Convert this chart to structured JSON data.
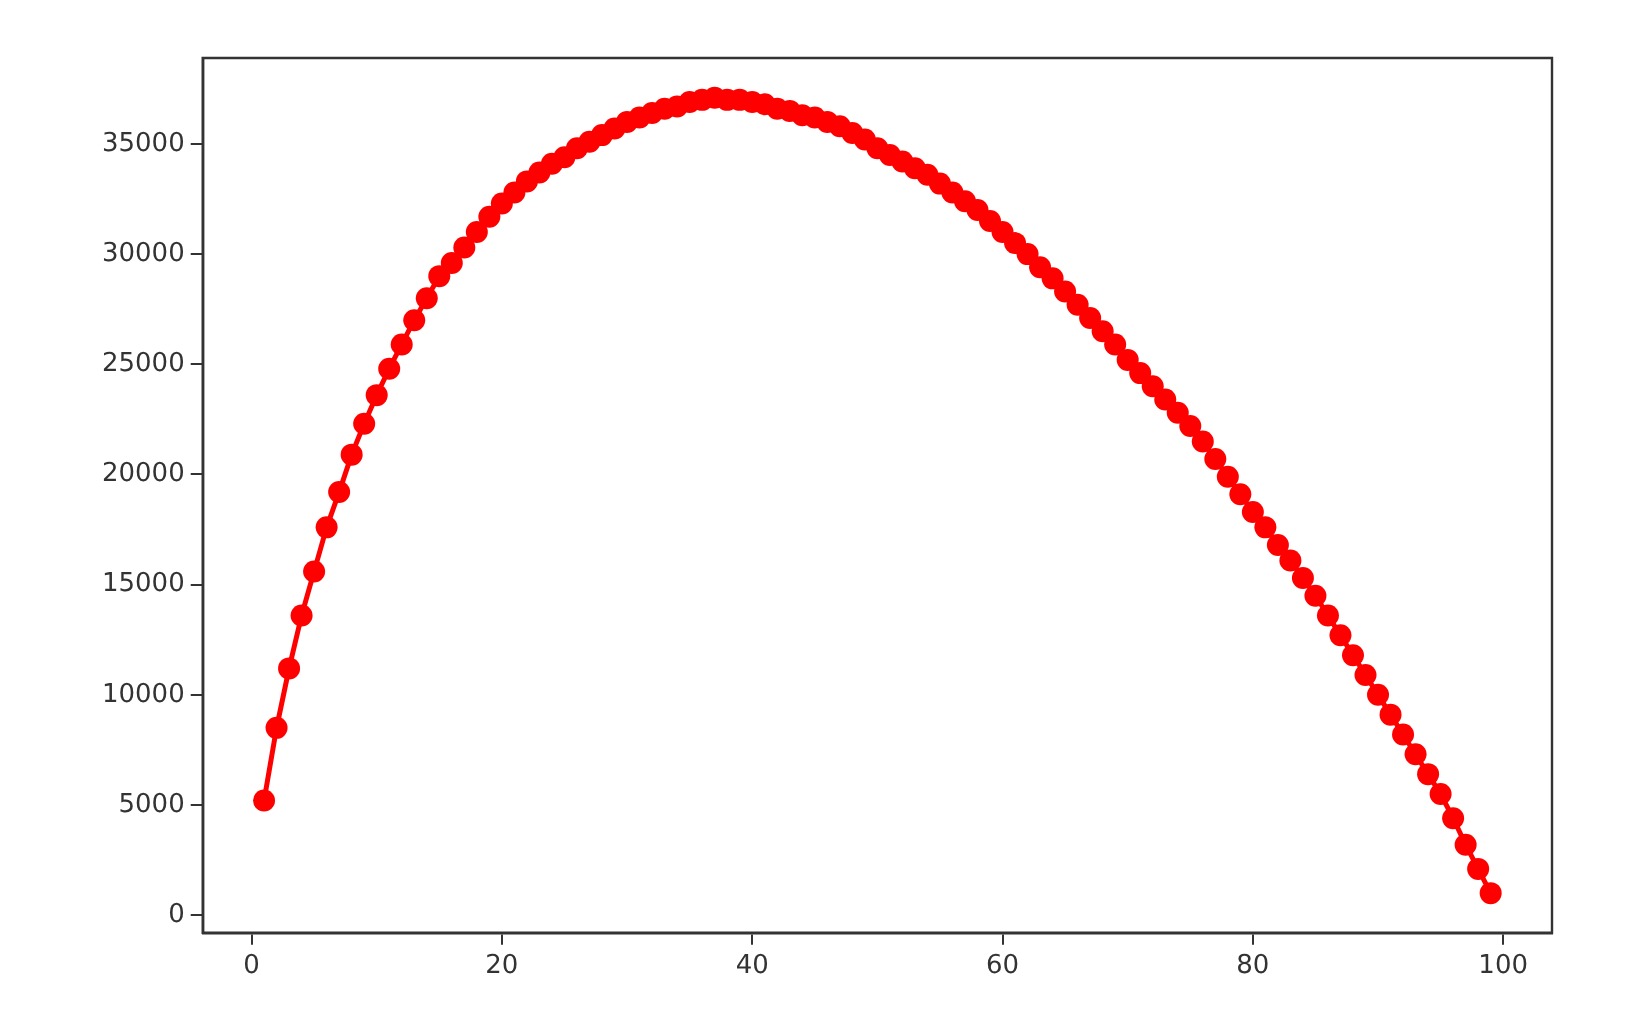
{
  "chart_data": {
    "type": "line",
    "marker": "circle",
    "grid": false,
    "x": [
      1,
      2,
      3,
      4,
      5,
      6,
      7,
      8,
      9,
      10,
      11,
      12,
      13,
      14,
      15,
      16,
      17,
      18,
      19,
      20,
      21,
      22,
      23,
      24,
      25,
      26,
      27,
      28,
      29,
      30,
      31,
      32,
      33,
      34,
      35,
      36,
      37,
      38,
      39,
      40,
      41,
      42,
      43,
      44,
      45,
      46,
      47,
      48,
      49,
      50,
      51,
      52,
      53,
      54,
      55,
      56,
      57,
      58,
      59,
      60,
      61,
      62,
      63,
      64,
      65,
      66,
      67,
      68,
      69,
      70,
      71,
      72,
      73,
      74,
      75,
      76,
      77,
      78,
      79,
      80,
      81,
      82,
      83,
      84,
      85,
      86,
      87,
      88,
      89,
      90,
      91,
      92,
      93,
      94,
      95,
      96,
      97,
      98,
      99
    ],
    "series": [
      {
        "color": "#ff0000",
        "values": [
          5200,
          8500,
          11200,
          13600,
          15600,
          17600,
          19200,
          20900,
          22300,
          23600,
          24800,
          25900,
          27000,
          28000,
          29000,
          29600,
          30300,
          31000,
          31700,
          32300,
          32800,
          33300,
          33700,
          34100,
          34400,
          34800,
          35100,
          35400,
          35700,
          36000,
          36200,
          36400,
          36600,
          36700,
          36900,
          37000,
          37100,
          37000,
          37000,
          36900,
          36800,
          36600,
          36500,
          36300,
          36200,
          36000,
          35800,
          35500,
          35200,
          34800,
          34500,
          34200,
          33900,
          33600,
          33200,
          32800,
          32400,
          32000,
          31500,
          31000,
          30500,
          30000,
          29400,
          28900,
          28300,
          27700,
          27100,
          26500,
          25900,
          25200,
          24600,
          24000,
          23400,
          22800,
          22200,
          21500,
          20700,
          19900,
          19100,
          18300,
          17600,
          16800,
          16100,
          15300,
          14500,
          13600,
          12700,
          11800,
          10900,
          10000,
          9100,
          8200,
          7300,
          6400,
          5500,
          4400,
          3200,
          2100,
          1000
        ]
      }
    ],
    "xlim": [
      -3.9,
      103.9
    ],
    "xticks": [
      0,
      20,
      40,
      60,
      80,
      100
    ],
    "ylim": [
      -800,
      38900
    ],
    "yticks": [
      0,
      5000,
      10000,
      15000,
      20000,
      25000,
      30000,
      35000
    ]
  }
}
